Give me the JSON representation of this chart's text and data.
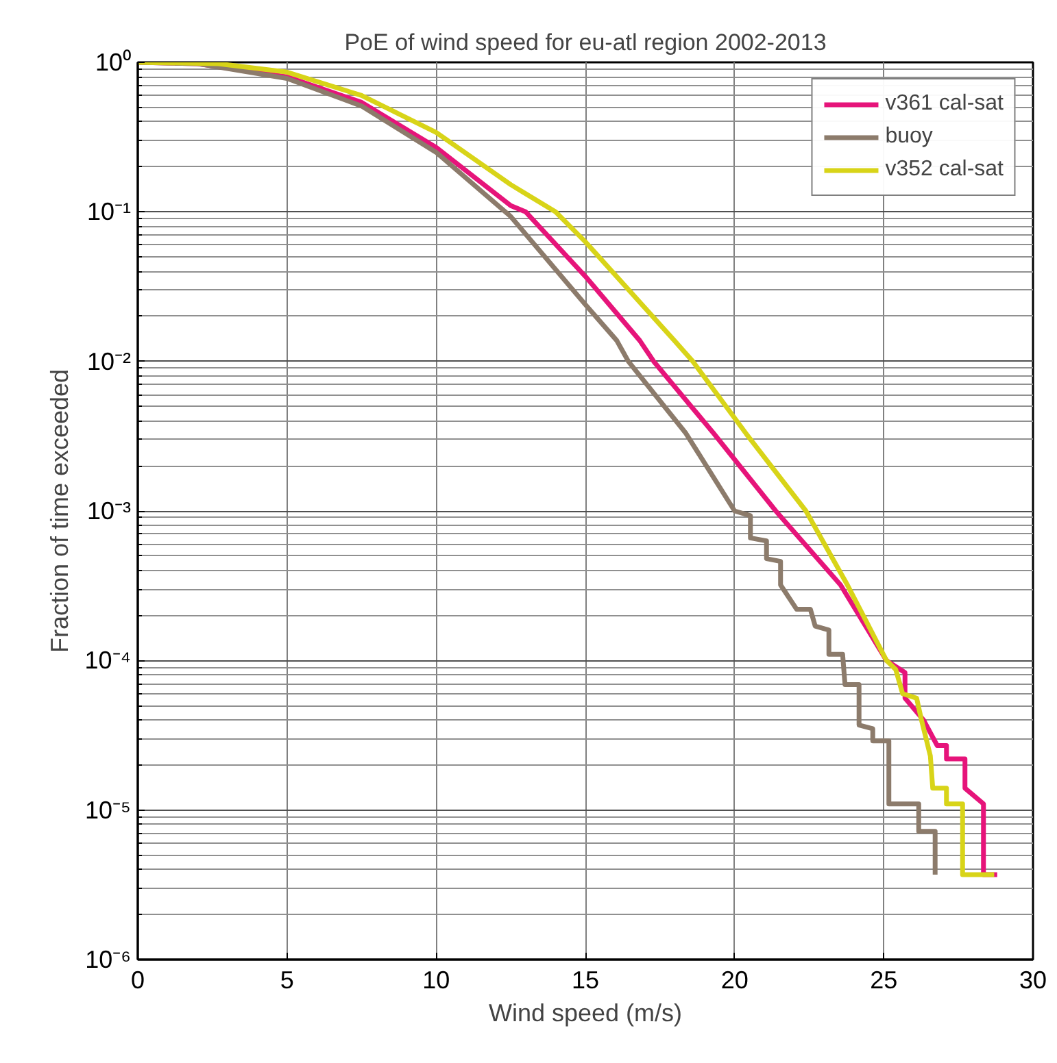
{
  "chart_data": {
    "type": "line",
    "title": "PoE of wind speed for eu-atl region 2002-2013",
    "xlabel": "Wind speed (m/s)",
    "ylabel": "Fraction of time exceeded",
    "xlim": [
      0,
      30
    ],
    "xticks": [
      0,
      5,
      10,
      15,
      20,
      25,
      30
    ],
    "ylim": [
      1e-06,
      1
    ],
    "yticks": [
      {
        "value": 1e-06,
        "label": "10⁻⁶"
      },
      {
        "value": 1e-05,
        "label": "10⁻⁵"
      },
      {
        "value": 0.0001,
        "label": "10⁻⁴"
      },
      {
        "value": 0.001,
        "label": "10⁻³"
      },
      {
        "value": 0.01,
        "label": "10⁻²"
      },
      {
        "value": 0.1,
        "label": "10⁻¹"
      },
      {
        "value": 1,
        "label": "10⁰"
      }
    ],
    "log": "y",
    "grid": true,
    "legend": "top right",
    "line_style": "solid",
    "marker": "none",
    "series": [
      {
        "name": "v361 cal-sat",
        "color": "#e6147a",
        "x": [
          0,
          2,
          5,
          7.5,
          10,
          12.5,
          13,
          15,
          16.82,
          17.29,
          19.3,
          21.38,
          23.55,
          25.09,
          25.71,
          25.71,
          26.33,
          26.79,
          27.1,
          27.1,
          27.72,
          27.72,
          28.34,
          28.34,
          28.8
        ],
        "values": [
          1,
          0.98,
          0.8,
          0.54,
          0.27,
          0.11,
          0.1,
          0.037,
          0.0138,
          0.01,
          0.0033,
          0.001,
          0.00032,
          0.0001,
          8.3e-05,
          5.6e-05,
          4e-05,
          2.7e-05,
          2.7e-05,
          2.2e-05,
          2.2e-05,
          1.4e-05,
          1.1e-05,
          3.7e-06,
          3.7e-06
        ]
      },
      {
        "name": "buoy",
        "color": "#8c7b6b",
        "x": [
          0,
          2,
          5,
          7.5,
          10,
          12.5,
          15,
          16.05,
          16.44,
          18.37,
          20.0,
          20.53,
          20.53,
          21.07,
          21.07,
          21.54,
          21.54,
          22.08,
          22.54,
          22.7,
          23.16,
          23.16,
          23.62,
          23.7,
          24.17,
          24.17,
          24.63,
          24.63,
          25.17,
          25.17,
          26.17,
          26.17,
          26.72,
          26.72
        ],
        "values": [
          1,
          0.98,
          0.78,
          0.51,
          0.25,
          0.093,
          0.024,
          0.0138,
          0.01,
          0.0033,
          0.001,
          0.00093,
          0.00066,
          0.00063,
          0.00048,
          0.00046,
          0.00032,
          0.00022,
          0.00022,
          0.00017,
          0.00016,
          0.00011,
          0.00011,
          6.9e-05,
          6.9e-05,
          3.7e-05,
          3.5e-05,
          2.9e-05,
          2.9e-05,
          1.1e-05,
          1.1e-05,
          7.2e-06,
          7.2e-06,
          3.7e-06
        ]
      },
      {
        "name": "v352 cal-sat",
        "color": "#d8d418",
        "x": [
          0,
          2.7,
          5,
          7.5,
          10,
          12.5,
          14,
          15,
          17.98,
          18.6,
          20.38,
          22.39,
          23.78,
          25.09,
          25.4,
          25.63,
          26.1,
          26.25,
          26.56,
          26.64,
          27.1,
          27.1,
          27.64,
          27.64,
          28.7
        ],
        "values": [
          1,
          0.98,
          0.86,
          0.6,
          0.34,
          0.152,
          0.1,
          0.063,
          0.0138,
          0.01,
          0.0033,
          0.001,
          0.00032,
          0.0001,
          8.7e-05,
          6e-05,
          5.6e-05,
          4.1e-05,
          2.3e-05,
          1.4e-05,
          1.4e-05,
          1.1e-05,
          1.1e-05,
          3.7e-06,
          3.7e-06
        ]
      }
    ]
  }
}
